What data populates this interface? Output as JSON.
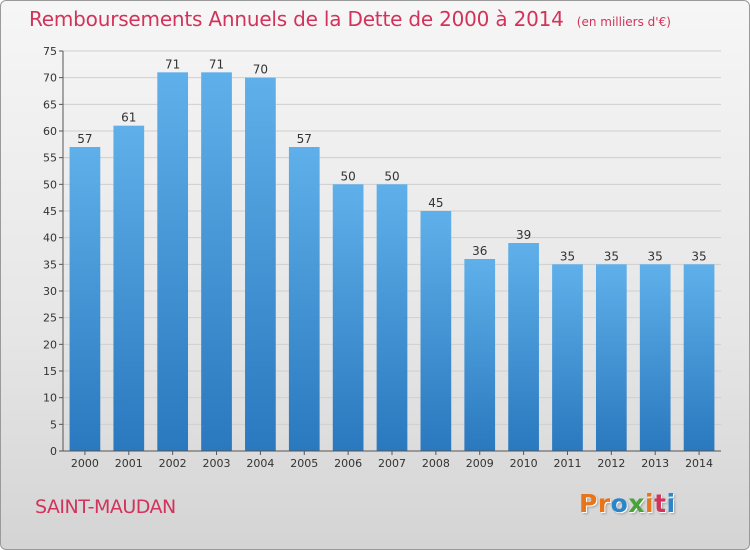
{
  "header": {
    "title": "Remboursements Annuels de la Dette de 2000 à 2014",
    "unit": "(en milliers d'€)"
  },
  "footer": {
    "commune": "SAINT-MAUDAN",
    "brand": "Proxiti",
    "brand_colors": [
      "#e8751a",
      "#e8751a",
      "#2a86c8",
      "#4aa23a",
      "#e8751a",
      "#d2335a",
      "#2a86c8"
    ]
  },
  "colors": {
    "title": "#d2335a",
    "bar_top": "#5fb0ea",
    "bar_bottom": "#2a78be",
    "grid": "#cfcfcf",
    "axis_text": "#333333"
  },
  "chart_data": {
    "type": "bar",
    "title": "Remboursements Annuels de la Dette de 2000 à 2014",
    "xlabel": "",
    "ylabel": "",
    "categories": [
      "2000",
      "2001",
      "2002",
      "2003",
      "2004",
      "2005",
      "2006",
      "2007",
      "2008",
      "2009",
      "2010",
      "2011",
      "2012",
      "2013",
      "2014"
    ],
    "values": [
      57,
      61,
      71,
      71,
      70,
      57,
      50,
      50,
      45,
      36,
      39,
      35,
      35,
      35,
      35
    ],
    "ylim": [
      0,
      75
    ],
    "yticks": [
      0,
      5,
      10,
      15,
      20,
      25,
      30,
      35,
      40,
      45,
      50,
      55,
      60,
      65,
      70,
      75
    ],
    "grid": true,
    "data_labels": true
  }
}
